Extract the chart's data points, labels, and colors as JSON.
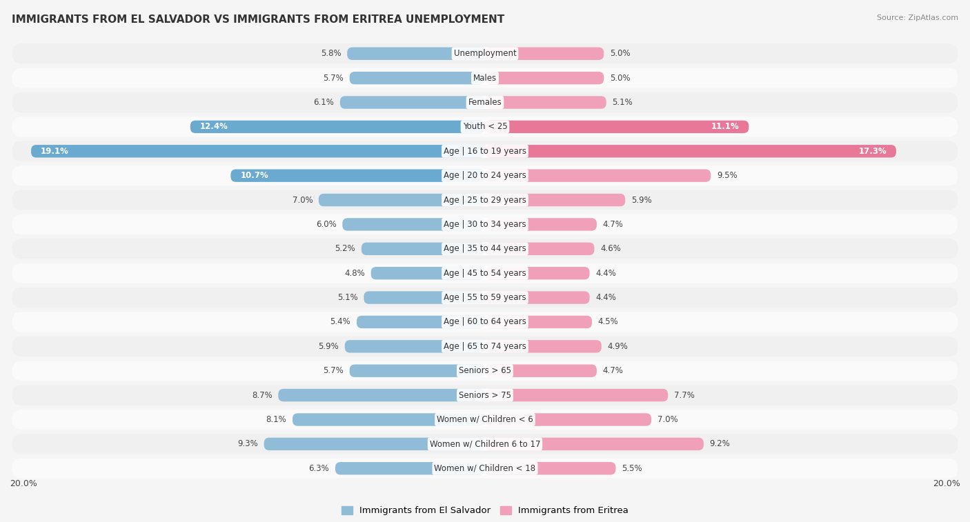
{
  "title": "IMMIGRANTS FROM EL SALVADOR VS IMMIGRANTS FROM ERITREA UNEMPLOYMENT",
  "source": "Source: ZipAtlas.com",
  "categories": [
    "Unemployment",
    "Males",
    "Females",
    "Youth < 25",
    "Age | 16 to 19 years",
    "Age | 20 to 24 years",
    "Age | 25 to 29 years",
    "Age | 30 to 34 years",
    "Age | 35 to 44 years",
    "Age | 45 to 54 years",
    "Age | 55 to 59 years",
    "Age | 60 to 64 years",
    "Age | 65 to 74 years",
    "Seniors > 65",
    "Seniors > 75",
    "Women w/ Children < 6",
    "Women w/ Children 6 to 17",
    "Women w/ Children < 18"
  ],
  "el_salvador": [
    5.8,
    5.7,
    6.1,
    12.4,
    19.1,
    10.7,
    7.0,
    6.0,
    5.2,
    4.8,
    5.1,
    5.4,
    5.9,
    5.7,
    8.7,
    8.1,
    9.3,
    6.3
  ],
  "eritrea": [
    5.0,
    5.0,
    5.1,
    11.1,
    17.3,
    9.5,
    5.9,
    4.7,
    4.6,
    4.4,
    4.4,
    4.5,
    4.9,
    4.7,
    7.7,
    7.0,
    9.2,
    5.5
  ],
  "el_salvador_color": "#90bcd8",
  "eritrea_color": "#f0a0b8",
  "el_salvador_strong_color": "#6aaad0",
  "eritrea_strong_color": "#e87898",
  "row_colors": [
    "#f0f0f0",
    "#fafafa"
  ],
  "label_inside_threshold": 10.0,
  "background_color": "#f5f5f5",
  "xlim": 20.0,
  "legend_label_salvador": "Immigrants from El Salvador",
  "legend_label_eritrea": "Immigrants from Eritrea",
  "title_fontsize": 11,
  "source_fontsize": 8,
  "label_fontsize": 8.5,
  "cat_fontsize": 8.5
}
